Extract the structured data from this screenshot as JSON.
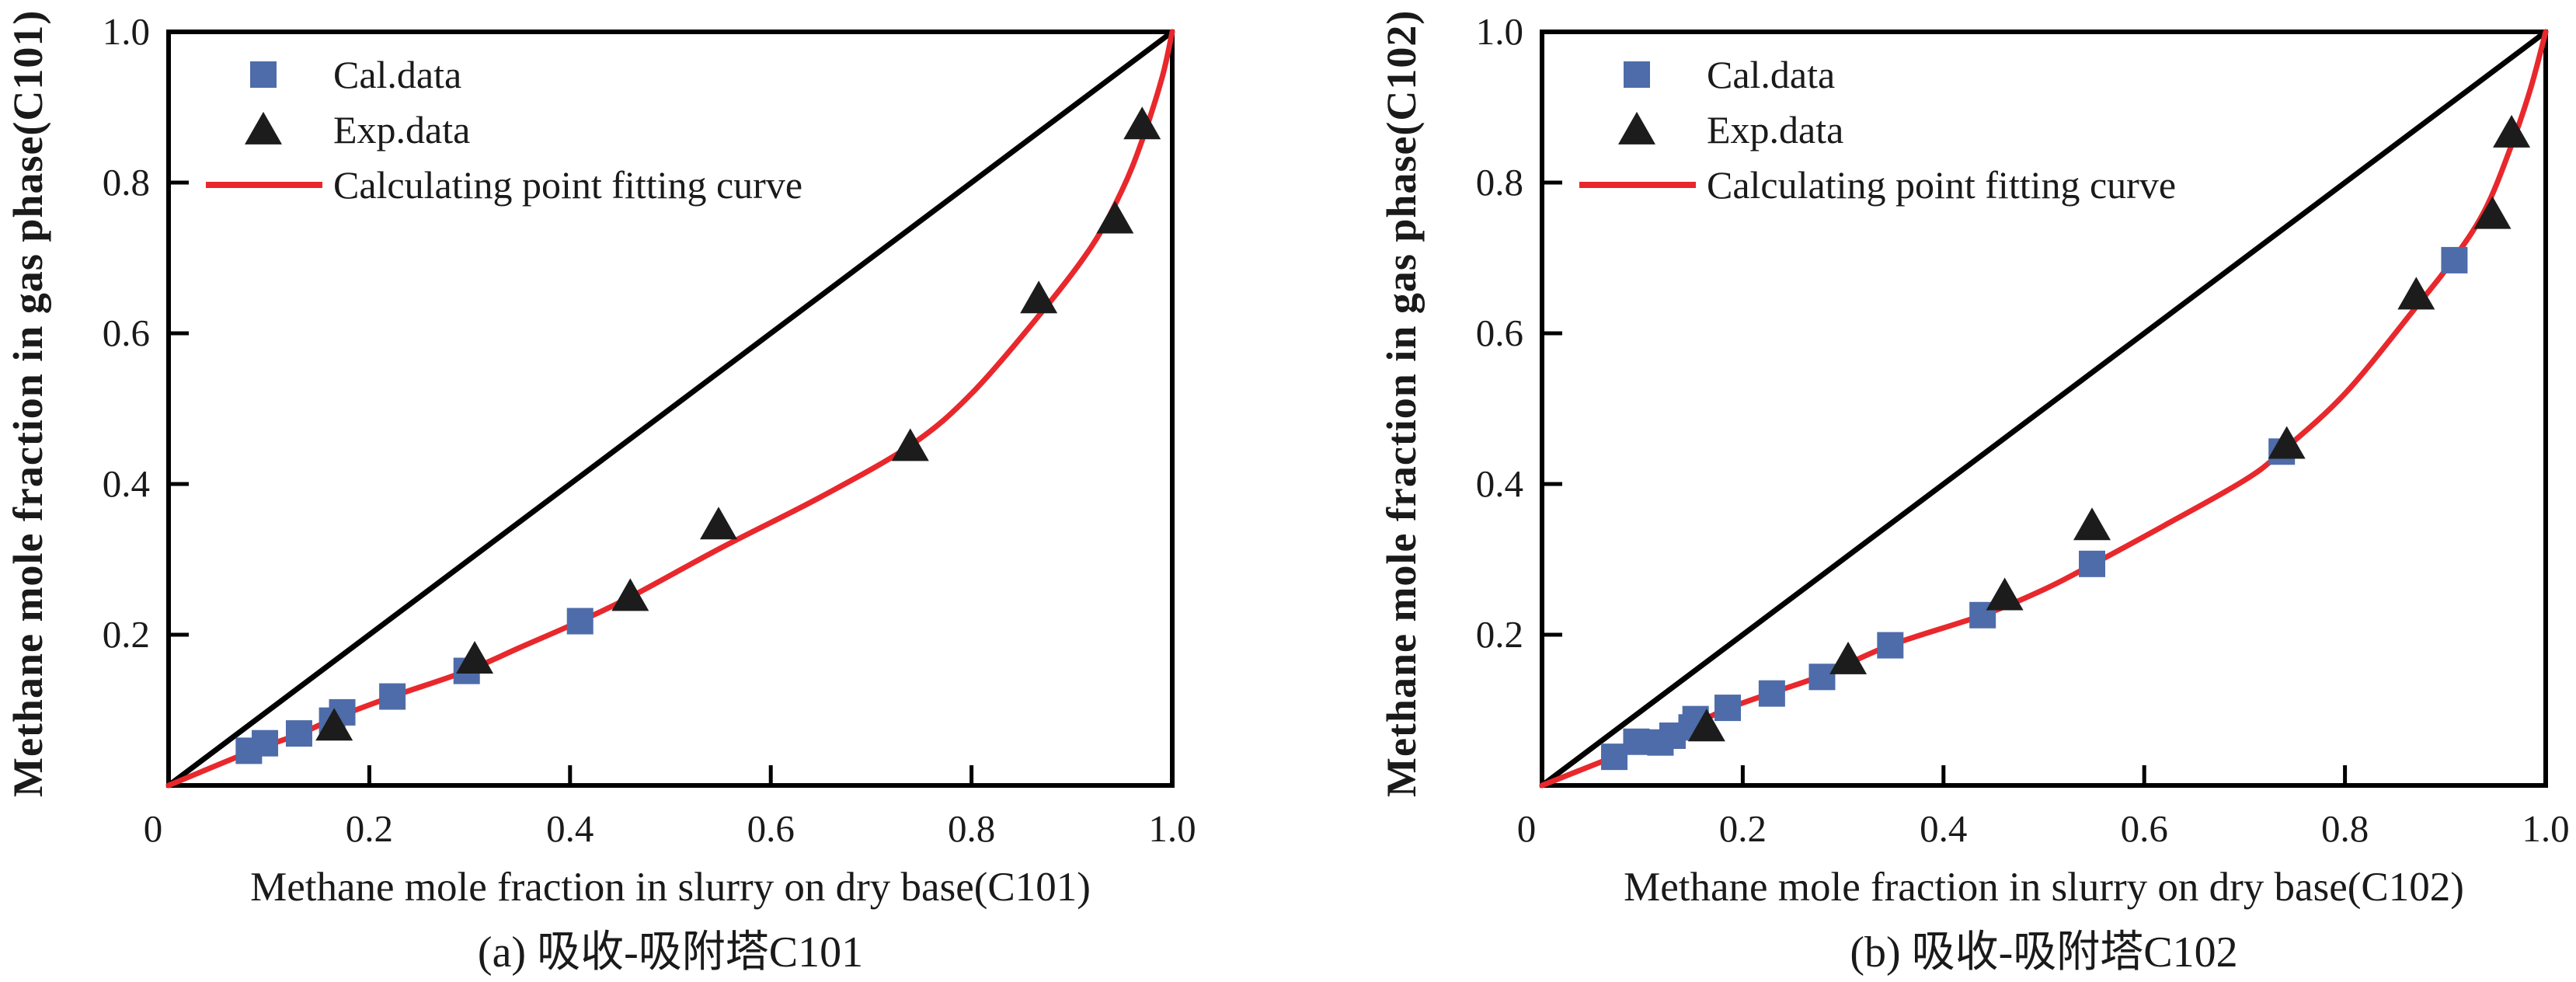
{
  "figure": {
    "background_color": "#ffffff",
    "description": "Two parity scatter plots comparing calculated and experimental methane mole fractions for absorption-adsorption towers C101 and C102"
  },
  "colors": {
    "cal_marker": "#4e6ca9",
    "exp_marker": "#1c1c1c",
    "fit_curve": "#e8282c",
    "reference_line": "#000000",
    "axis": "#000000",
    "text": "#1a1a1a"
  },
  "chart_data": [
    {
      "type": "scatter",
      "title": "(a) 吸收-吸附塔C101",
      "xlabel": "Methane mole fraction in slurry on dry base(C101)",
      "ylabel": "Methane mole fraction in gas phase(C101)",
      "xlim": [
        0,
        1.0
      ],
      "ylim": [
        0,
        1.0
      ],
      "grid": false,
      "legend_position": "top-left",
      "x_ticks": [
        0,
        0.2,
        0.4,
        0.6,
        0.8,
        1.0
      ],
      "x_tick_labels": [
        "0",
        "0.2",
        "0.4",
        "0.6",
        "0.8",
        "1.0"
      ],
      "y_ticks": [
        0.2,
        0.4,
        0.6,
        0.8,
        1.0
      ],
      "y_tick_labels": [
        "0.2",
        "0.4",
        "0.6",
        "0.8",
        "1.0"
      ],
      "series": [
        {
          "name": "Cal.data",
          "role": "cal",
          "marker": "square",
          "color": "#4e6ca9",
          "in_legend": true,
          "points": [
            [
              0.08,
              0.046
            ],
            [
              0.096,
              0.056
            ],
            [
              0.13,
              0.069
            ],
            [
              0.163,
              0.086
            ],
            [
              0.173,
              0.097
            ],
            [
              0.223,
              0.118
            ],
            [
              0.297,
              0.152
            ],
            [
              0.41,
              0.218
            ]
          ]
        },
        {
          "name": "Exp.data",
          "role": "exp",
          "marker": "triangle",
          "color": "#1c1c1c",
          "in_legend": true,
          "points": [
            [
              0.165,
              0.079
            ],
            [
              0.305,
              0.168
            ],
            [
              0.46,
              0.251
            ],
            [
              0.548,
              0.346
            ],
            [
              0.739,
              0.45
            ],
            [
              0.867,
              0.646
            ],
            [
              0.943,
              0.752
            ],
            [
              0.97,
              0.877
            ]
          ]
        },
        {
          "name": "Calculating point fitting curve",
          "role": "fit",
          "line": true,
          "smooth": true,
          "color": "#e8282c",
          "in_legend": true,
          "points": [
            [
              0,
              0
            ],
            [
              0.08,
              0.044
            ],
            [
              0.13,
              0.068
            ],
            [
              0.167,
              0.09
            ],
            [
              0.223,
              0.118
            ],
            [
              0.297,
              0.152
            ],
            [
              0.35,
              0.183
            ],
            [
              0.41,
              0.218
            ],
            [
              0.46,
              0.25
            ],
            [
              0.55,
              0.315
            ],
            [
              0.65,
              0.383
            ],
            [
              0.74,
              0.452
            ],
            [
              0.8,
              0.52
            ],
            [
              0.87,
              0.628
            ],
            [
              0.92,
              0.716
            ],
            [
              0.95,
              0.79
            ],
            [
              0.97,
              0.856
            ],
            [
              0.99,
              0.94
            ],
            [
              1.0,
              1.0
            ]
          ]
        },
        {
          "name": "parity reference line y=x",
          "role": "reference",
          "line": true,
          "smooth": false,
          "color": "#000000",
          "in_legend": false,
          "points": [
            [
              0,
              0
            ],
            [
              1.0,
              1.0
            ]
          ]
        }
      ]
    },
    {
      "type": "scatter",
      "title": "(b) 吸收-吸附塔C102",
      "xlabel": "Methane mole fraction in slurry on dry base(C102)",
      "ylabel": "Methane mole fraction in gas phase(C102)",
      "xlim": [
        0,
        1.0
      ],
      "ylim": [
        0,
        1.0
      ],
      "grid": false,
      "legend_position": "top-left",
      "x_ticks": [
        0,
        0.2,
        0.4,
        0.6,
        0.8,
        1.0
      ],
      "x_tick_labels": [
        "0",
        "0.2",
        "0.4",
        "0.6",
        "0.8",
        "1.0"
      ],
      "y_ticks": [
        0.2,
        0.4,
        0.6,
        0.8,
        1.0
      ],
      "y_tick_labels": [
        "0.2",
        "0.4",
        "0.6",
        "0.8",
        "1.0"
      ],
      "series": [
        {
          "name": "Cal.data",
          "role": "cal",
          "marker": "square",
          "color": "#4e6ca9",
          "in_legend": true,
          "points": [
            [
              0.072,
              0.038
            ],
            [
              0.094,
              0.058
            ],
            [
              0.118,
              0.057
            ],
            [
              0.13,
              0.066
            ],
            [
              0.149,
              0.077
            ],
            [
              0.153,
              0.088
            ],
            [
              0.185,
              0.103
            ],
            [
              0.229,
              0.122
            ],
            [
              0.279,
              0.144
            ],
            [
              0.347,
              0.186
            ],
            [
              0.439,
              0.226
            ],
            [
              0.548,
              0.294
            ],
            [
              0.737,
              0.443
            ],
            [
              0.909,
              0.697
            ]
          ]
        },
        {
          "name": "Exp.data",
          "role": "exp",
          "marker": "triangle",
          "color": "#1c1c1c",
          "in_legend": true,
          "points": [
            [
              0.164,
              0.078
            ],
            [
              0.305,
              0.167
            ],
            [
              0.461,
              0.252
            ],
            [
              0.548,
              0.345
            ],
            [
              0.742,
              0.453
            ],
            [
              0.871,
              0.651
            ],
            [
              0.947,
              0.758
            ],
            [
              0.966,
              0.866
            ]
          ]
        },
        {
          "name": "Calculating point fitting curve",
          "role": "fit",
          "line": true,
          "smooth": true,
          "color": "#e8282c",
          "in_legend": true,
          "points": [
            [
              0,
              0
            ],
            [
              0.072,
              0.038
            ],
            [
              0.118,
              0.06
            ],
            [
              0.153,
              0.082
            ],
            [
              0.185,
              0.102
            ],
            [
              0.229,
              0.123
            ],
            [
              0.279,
              0.146
            ],
            [
              0.347,
              0.186
            ],
            [
              0.439,
              0.226
            ],
            [
              0.5,
              0.26
            ],
            [
              0.548,
              0.293
            ],
            [
              0.62,
              0.345
            ],
            [
              0.7,
              0.405
            ],
            [
              0.737,
              0.443
            ],
            [
              0.8,
              0.52
            ],
            [
              0.871,
              0.635
            ],
            [
              0.909,
              0.7
            ],
            [
              0.94,
              0.765
            ],
            [
              0.966,
              0.85
            ],
            [
              0.985,
              0.925
            ],
            [
              1.0,
              1.0
            ]
          ]
        },
        {
          "name": "parity reference line y=x",
          "role": "reference",
          "line": true,
          "smooth": false,
          "color": "#000000",
          "in_legend": false,
          "points": [
            [
              0,
              0
            ],
            [
              1.0,
              1.0
            ]
          ]
        }
      ]
    }
  ]
}
